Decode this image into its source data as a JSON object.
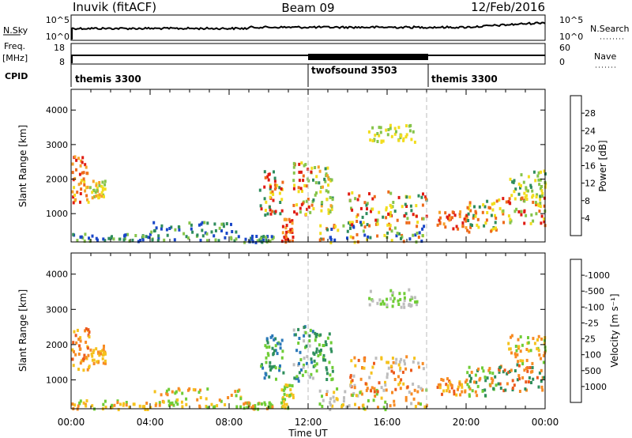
{
  "header": {
    "radar": "Inuvik  (fitACF)",
    "beam": "Beam 09",
    "date": "12/Feb/2016"
  },
  "strip": {
    "nsky_label": "N.Sky",
    "nsky_ticks": [
      "10^5",
      "10^0"
    ],
    "nsearch_label": "N.Search",
    "nsearch_ticks": [
      "10^5",
      "10^0"
    ],
    "freq_label_1": "Freq.",
    "freq_label_2": "[MHz]",
    "freq_ticks": [
      "18",
      "8"
    ],
    "nave_label": "Nave",
    "nave_ticks": [
      "60",
      "0"
    ],
    "cpid_label": "CPID",
    "programs": [
      {
        "name": "themis 3300",
        "start_hour": 0
      },
      {
        "name": "twofsound 3503",
        "start_hour": 12
      },
      {
        "name": "themis 3300",
        "start_hour": 18
      }
    ]
  },
  "chart_data": [
    {
      "type": "heatmap",
      "title": "",
      "ylabel": "Slant Range [km]",
      "xlabel": "",
      "xlim": [
        0,
        24
      ],
      "ylim": [
        180,
        4600
      ],
      "yticks": [
        1000,
        2000,
        3000,
        4000
      ],
      "colorbar": {
        "label": "Power [dB]",
        "ticks": [
          "4",
          "8",
          "12",
          "16",
          "20",
          "24",
          "28"
        ],
        "colors": [
          "#0b1ae0",
          "#1a47c8",
          "#2e8c5c",
          "#86c44a",
          "#f2dd1d",
          "#f7a12a",
          "#ee6a1a",
          "#e01b12"
        ]
      },
      "regions": [
        {
          "t": [
            0.0,
            0.9
          ],
          "r": [
            1300,
            2700
          ],
          "c": [
            6,
            5,
            4,
            7
          ]
        },
        {
          "t": [
            0.9,
            1.7
          ],
          "r": [
            1500,
            2000
          ],
          "c": [
            3,
            5,
            4
          ]
        },
        {
          "t": [
            0.0,
            4.0
          ],
          "r": [
            200,
            450
          ],
          "c": [
            2,
            3,
            1
          ]
        },
        {
          "t": [
            4.0,
            8.8
          ],
          "r": [
            250,
            800
          ],
          "c": [
            2,
            3,
            1
          ]
        },
        {
          "t": [
            8.7,
            10.2
          ],
          "r": [
            200,
            400
          ],
          "c": [
            1,
            2,
            3
          ]
        },
        {
          "t": [
            9.5,
            10.7
          ],
          "r": [
            1000,
            2300
          ],
          "c": [
            4,
            6,
            7,
            2
          ]
        },
        {
          "t": [
            10.6,
            11.2
          ],
          "r": [
            200,
            900
          ],
          "c": [
            7,
            6,
            5
          ]
        },
        {
          "t": [
            11.2,
            12.2
          ],
          "r": [
            1000,
            2600
          ],
          "c": [
            7,
            6,
            4,
            3
          ]
        },
        {
          "t": [
            12.2,
            13.2
          ],
          "r": [
            1000,
            2400
          ],
          "c": [
            2,
            3,
            4,
            5
          ]
        },
        {
          "t": [
            12.5,
            18.0
          ],
          "r": [
            200,
            800
          ],
          "c": [
            1,
            2,
            3,
            6,
            4
          ]
        },
        {
          "t": [
            14.0,
            18.0
          ],
          "r": [
            700,
            1700
          ],
          "c": [
            2,
            3,
            4,
            6,
            7
          ]
        },
        {
          "t": [
            15.0,
            17.5
          ],
          "r": [
            3100,
            3600
          ],
          "c": [
            3,
            4
          ]
        },
        {
          "t": [
            18.5,
            20.0
          ],
          "r": [
            600,
            1100
          ],
          "c": [
            7,
            6,
            5
          ]
        },
        {
          "t": [
            20.0,
            21.5
          ],
          "r": [
            500,
            1400
          ],
          "c": [
            2,
            4,
            6
          ]
        },
        {
          "t": [
            21.5,
            24.0
          ],
          "r": [
            700,
            1500
          ],
          "c": [
            7,
            6,
            4,
            3
          ]
        },
        {
          "t": [
            22.0,
            24.0
          ],
          "r": [
            1500,
            2300
          ],
          "c": [
            2,
            3,
            4
          ]
        }
      ]
    },
    {
      "type": "heatmap",
      "title": "",
      "ylabel": "Slant Range [km]",
      "xlabel": "Time UT",
      "xlim": [
        0,
        24
      ],
      "ylim": [
        180,
        4600
      ],
      "yticks": [
        1000,
        2000,
        3000,
        4000
      ],
      "xticks": [
        "00:00",
        "04:00",
        "08:00",
        "12:00",
        "16:00",
        "20:00",
        "00:00"
      ],
      "colorbar": {
        "label": "Velocity [m s⁻¹]",
        "ticks": [
          "1000",
          "500",
          "100",
          "25",
          "-25",
          "-100",
          "-500",
          "-1000"
        ],
        "colors": [
          "#1837b5",
          "#2a78b8",
          "#2f8f5c",
          "#6fcc35",
          "#bdbdbd",
          "#f5c21d",
          "#f78b24",
          "#ec5a1c",
          "#e01b12"
        ]
      },
      "regions": [
        {
          "t": [
            0.0,
            0.9
          ],
          "r": [
            1300,
            2500
          ],
          "c": [
            7,
            6,
            5
          ]
        },
        {
          "t": [
            0.9,
            1.7
          ],
          "r": [
            1500,
            2000
          ],
          "c": [
            6,
            5
          ]
        },
        {
          "t": [
            0.0,
            4.0
          ],
          "r": [
            200,
            450
          ],
          "c": [
            3,
            5,
            6
          ]
        },
        {
          "t": [
            4.0,
            8.8
          ],
          "r": [
            250,
            800
          ],
          "c": [
            5,
            6,
            3
          ]
        },
        {
          "t": [
            8.7,
            10.2
          ],
          "r": [
            200,
            400
          ],
          "c": [
            3,
            6
          ]
        },
        {
          "t": [
            9.5,
            10.7
          ],
          "r": [
            1000,
            2300
          ],
          "c": [
            2,
            3,
            1
          ]
        },
        {
          "t": [
            10.6,
            11.2
          ],
          "r": [
            200,
            900
          ],
          "c": [
            3,
            5
          ]
        },
        {
          "t": [
            11.2,
            12.2
          ],
          "r": [
            1000,
            2600
          ],
          "c": [
            2,
            3,
            1,
            4
          ]
        },
        {
          "t": [
            12.2,
            13.2
          ],
          "r": [
            1000,
            2400
          ],
          "c": [
            2,
            3
          ]
        },
        {
          "t": [
            12.5,
            18.0
          ],
          "r": [
            200,
            800
          ],
          "c": [
            4,
            5,
            6,
            3
          ]
        },
        {
          "t": [
            14.0,
            18.0
          ],
          "r": [
            700,
            1700
          ],
          "c": [
            6,
            5,
            7,
            4
          ]
        },
        {
          "t": [
            15.0,
            17.5
          ],
          "r": [
            3100,
            3600
          ],
          "c": [
            3,
            4
          ]
        },
        {
          "t": [
            18.5,
            20.0
          ],
          "r": [
            600,
            1100
          ],
          "c": [
            6,
            7,
            5
          ]
        },
        {
          "t": [
            20.0,
            21.5
          ],
          "r": [
            500,
            1400
          ],
          "c": [
            2,
            3,
            6
          ]
        },
        {
          "t": [
            21.5,
            24.0
          ],
          "r": [
            700,
            1500
          ],
          "c": [
            6,
            7,
            2
          ]
        },
        {
          "t": [
            22.0,
            24.0
          ],
          "r": [
            1500,
            2300
          ],
          "c": [
            6,
            5,
            3
          ]
        }
      ]
    }
  ]
}
